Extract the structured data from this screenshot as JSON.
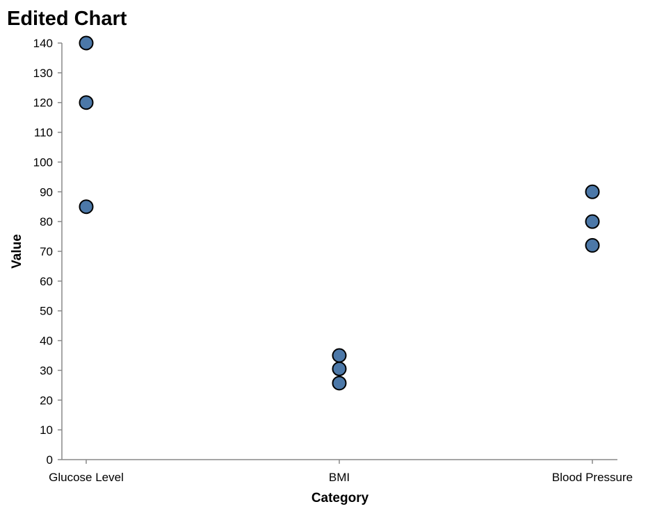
{
  "chart_data": {
    "type": "scatter",
    "title": "Edited Chart",
    "xlabel": "Category",
    "ylabel": "Value",
    "categories": [
      "Glucose Level",
      "BMI",
      "Blood Pressure"
    ],
    "points": [
      {
        "category": "Glucose Level",
        "value": 140
      },
      {
        "category": "Glucose Level",
        "value": 120
      },
      {
        "category": "Glucose Level",
        "value": 85
      },
      {
        "category": "BMI",
        "value": 35
      },
      {
        "category": "BMI",
        "value": 30.5
      },
      {
        "category": "BMI",
        "value": 25.7
      },
      {
        "category": "Blood Pressure",
        "value": 90
      },
      {
        "category": "Blood Pressure",
        "value": 80
      },
      {
        "category": "Blood Pressure",
        "value": 72
      }
    ],
    "ylim": [
      0,
      140
    ],
    "yticks": [
      0,
      10,
      20,
      30,
      40,
      50,
      60,
      70,
      80,
      90,
      100,
      110,
      120,
      130,
      140
    ],
    "grid": false,
    "point_color": "#4c78a8",
    "point_stroke": "#000000"
  }
}
